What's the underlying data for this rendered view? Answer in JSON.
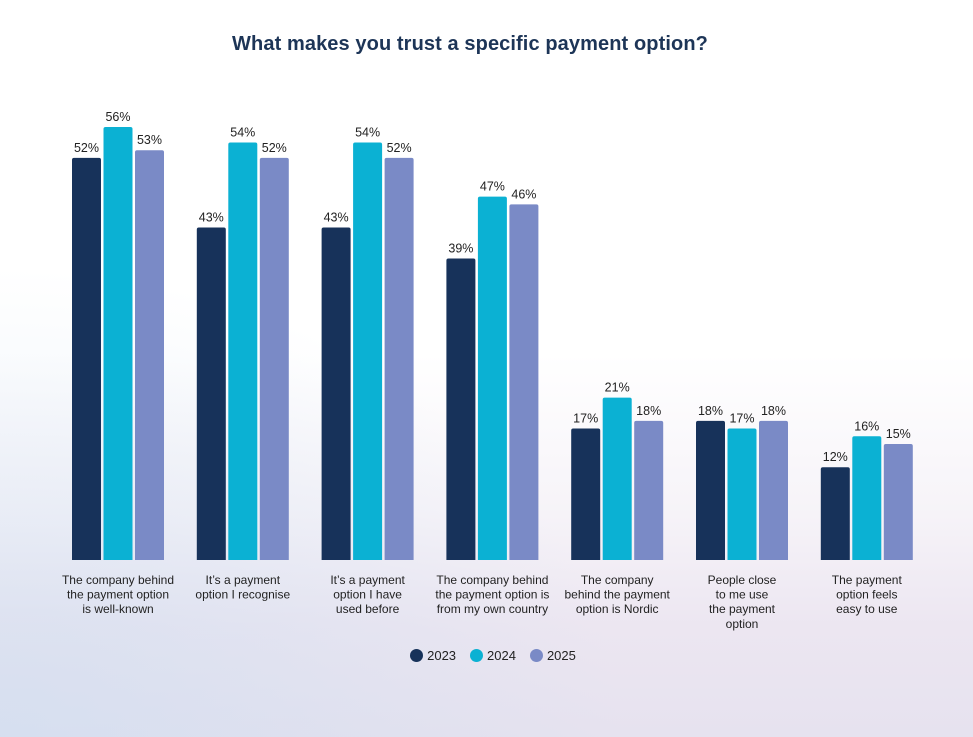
{
  "chart_data": {
    "type": "bar",
    "title": "What makes you trust a specific payment option?",
    "categories": [
      [
        "The company behind",
        "the payment option",
        "is well-known"
      ],
      [
        "It’s a payment",
        "option I recognise"
      ],
      [
        "It’s a payment",
        "option I have",
        "used before"
      ],
      [
        "The company behind",
        "the payment option is",
        "from my own country"
      ],
      [
        "The company",
        "behind the payment",
        "option is Nordic"
      ],
      [
        "People close",
        "to me use",
        "the payment",
        "option"
      ],
      [
        "The payment",
        "option feels",
        "easy to use"
      ]
    ],
    "series": [
      {
        "name": "2023",
        "color": "#17325a",
        "values": [
          52,
          43,
          43,
          39,
          17,
          18,
          12
        ]
      },
      {
        "name": "2024",
        "color": "#0bb1d3",
        "values": [
          56,
          54,
          54,
          47,
          21,
          17,
          16
        ]
      },
      {
        "name": "2025",
        "color": "#7a8ac6",
        "values": [
          53,
          52,
          52,
          46,
          18,
          18,
          15
        ]
      }
    ],
    "value_suffix": "%",
    "ylim": [
      0,
      56
    ],
    "legend_position": "bottom",
    "grid": false
  }
}
